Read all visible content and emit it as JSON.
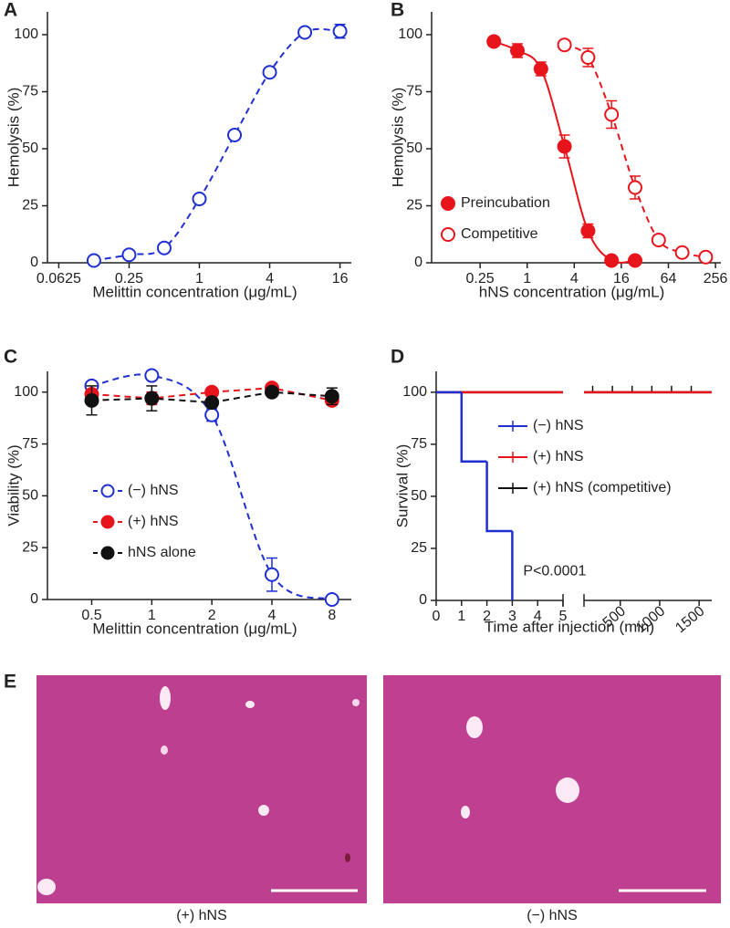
{
  "chart_data": [
    {
      "type": "line",
      "panel_label": "A",
      "y_label": "Hemolysis (%)",
      "x_label": "Melittin concentration (μg/mL)",
      "xscale": "log",
      "xlim": [
        0.05,
        20
      ],
      "xticks": [
        0.0625,
        0.25,
        1,
        4,
        16
      ],
      "ylim": [
        0,
        110
      ],
      "yticks": [
        0,
        25,
        50,
        75,
        100
      ],
      "series": [
        {
          "color": "#1f2fd0",
          "marker": "open",
          "line": "dashed",
          "interpolation": "smooth",
          "x": [
            0.125,
            0.25,
            0.5,
            1,
            2,
            4,
            8,
            16
          ],
          "values": [
            1,
            3.5,
            6.5,
            28,
            56,
            83.5,
            101,
            101.5
          ],
          "errors": [
            0,
            0,
            0,
            0,
            0,
            0,
            0,
            3
          ]
        }
      ]
    },
    {
      "type": "line",
      "panel_label": "B",
      "y_label": "Hemolysis (%)",
      "x_label": "hNS concentration (μg/mL)",
      "xscale": "log",
      "xlim": [
        0.06,
        300
      ],
      "xticks": [
        0.25,
        1,
        4,
        16,
        64,
        256
      ],
      "ylim": [
        0,
        110
      ],
      "yticks": [
        0,
        25,
        50,
        75,
        100
      ],
      "legend": "lower left",
      "legend_style": "marker",
      "series": [
        {
          "name": "Preincubation",
          "color": "#e8141c",
          "marker": "filled",
          "line": "solid",
          "interpolation": "smooth",
          "x": [
            0.375,
            0.75,
            1.5,
            3,
            6,
            12,
            24
          ],
          "values": [
            97,
            93,
            85,
            51,
            14,
            1,
            1
          ],
          "errors": [
            2,
            3,
            3,
            5,
            3,
            1,
            1
          ]
        },
        {
          "name": "Competitive",
          "color": "#e8141c",
          "marker": "open",
          "line": "dashed",
          "interpolation": "smooth",
          "x": [
            3,
            6,
            12,
            24,
            48,
            96,
            192
          ],
          "values": [
            95.5,
            90,
            65,
            33,
            10,
            4.5,
            2.5
          ],
          "errors": [
            2,
            4,
            6,
            5,
            2,
            1,
            1
          ]
        }
      ]
    },
    {
      "type": "line",
      "panel_label": "C",
      "y_label": "Viability (%)",
      "x_label": "Melittin concentration (μg/mL)",
      "xscale": "log",
      "xlim": [
        0.3,
        10
      ],
      "xticks": [
        0.5,
        1,
        2,
        4,
        8
      ],
      "ylim": [
        0,
        110
      ],
      "yticks": [
        0,
        25,
        50,
        75,
        100
      ],
      "legend": "center left",
      "legend_style": "line",
      "series": [
        {
          "name": "(−) hNS",
          "color": "#1f2fd0",
          "marker": "open",
          "line": "dashed",
          "interpolation": "smooth",
          "x": [
            0.5,
            1,
            2,
            4,
            8
          ],
          "values": [
            103,
            108,
            89,
            12,
            0
          ],
          "errors": [
            2,
            1,
            3,
            8,
            0
          ]
        },
        {
          "name": "(+) hNS",
          "color": "#e8141c",
          "marker": "filled",
          "line": "dashed",
          "interpolation": "linear",
          "x": [
            0.5,
            1,
            2,
            4,
            8
          ],
          "values": [
            99,
            97,
            100,
            102,
            96
          ],
          "errors": [
            2,
            3,
            1,
            1,
            2
          ]
        },
        {
          "name": "hNS alone",
          "color": "#111111",
          "marker": "filled",
          "line": "dashed",
          "interpolation": "linear",
          "x": [
            0.5,
            1,
            2,
            4,
            8
          ],
          "values": [
            96,
            97,
            95,
            100,
            98
          ],
          "errors": [
            7,
            6,
            2,
            1,
            4
          ]
        }
      ]
    },
    {
      "type": "survival",
      "panel_label": "D",
      "y_label": "Survival (%)",
      "x_label": "Time after injection (min)",
      "xlim": [
        0,
        5
      ],
      "xticks": [
        0,
        1,
        2,
        3,
        4,
        5
      ],
      "x2lim": [
        40,
        1660
      ],
      "x2ticks": [
        500,
        1000,
        1500
      ],
      "ylim": [
        0,
        110
      ],
      "yticks": [
        0,
        25,
        50,
        75,
        100
      ],
      "legend": "upper center",
      "legend_style": "line",
      "annotation": "P<0.0001",
      "series": [
        {
          "name": "(−) hNS",
          "color": "#1f2fd0",
          "x": [
            0,
            1,
            2,
            3
          ],
          "values": [
            100,
            66.7,
            33.3,
            0
          ]
        },
        {
          "name": "(+) hNS",
          "color": "#e8141c",
          "x": [
            0
          ],
          "values": [
            100
          ]
        },
        {
          "name": "(+) hNS (competitive)",
          "color": "#111111",
          "x": [
            0
          ],
          "values": [
            100
          ],
          "censor_x": [
            150,
            400,
            650,
            900,
            1150,
            1400
          ]
        }
      ]
    }
  ],
  "images": {
    "label": "E",
    "captions": [
      "(+) hNS",
      "(−) hNS"
    ]
  }
}
